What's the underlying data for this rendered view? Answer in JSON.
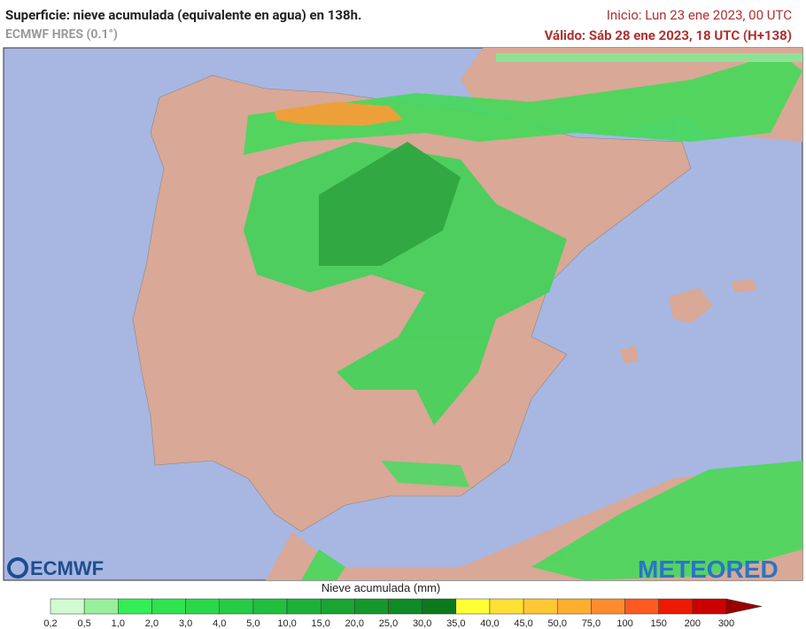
{
  "header": {
    "title": "Superficie: nieve acumulada (equivalente en agua) en 138h.",
    "model": "ECMWF HRES (0.1°)",
    "init": "Inicio: Lun 23 ene 2023, 00 UTC",
    "valid": "Válido: Sáb 28 ene 2023, 18 UTC (H+138)"
  },
  "logos": {
    "ecmwf": "ECMWF",
    "meteored": "METEORED"
  },
  "legend": {
    "title": "Nieve acumulada (mm)",
    "ticks": [
      "0,2",
      "0,5",
      "1,0",
      "2,0",
      "3,0",
      "4,0",
      "5,0",
      "10,0",
      "15,0",
      "20,0",
      "25,0",
      "30,0",
      "35,0",
      "40,0",
      "45,0",
      "50,0",
      "75,0",
      "100",
      "150",
      "200",
      "300"
    ],
    "colors": [
      "#d0fbd0",
      "#98ef9c",
      "#33ee55",
      "#2fe34f",
      "#2ad84a",
      "#25cc44",
      "#20bf3e",
      "#1cb238",
      "#18a532",
      "#14982c",
      "#108a25",
      "#0b7a1c",
      "#ffff33",
      "#ffe033",
      "#ffc833",
      "#ffae30",
      "#ff8c2c",
      "#ff5a22",
      "#ee1a00",
      "#cc0000",
      "#9a0000"
    ]
  }
}
